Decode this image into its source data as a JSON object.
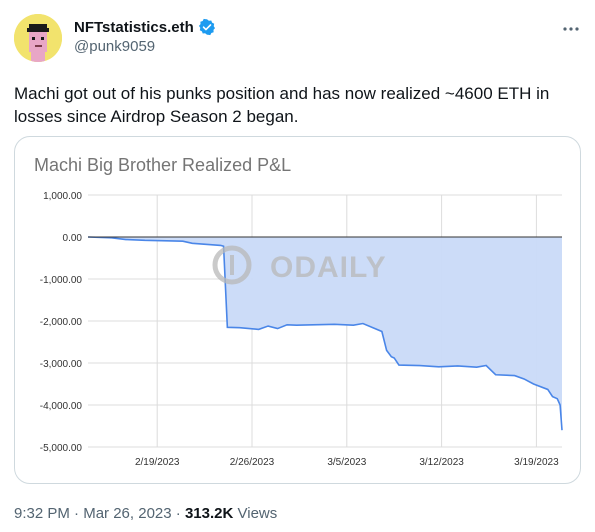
{
  "author": {
    "display_name": "NFTstatistics.eth",
    "handle": "@punk9059",
    "verified": true,
    "avatar_icon": "cryptopunk-avatar"
  },
  "more_icon": "more-options-icon",
  "tweet": {
    "text": "Machi got out of his punks position and has now realized ~4600 ETH in losses since Airdrop Season 2 began."
  },
  "chart_data": {
    "type": "area",
    "title": "Machi Big Brother Realized P&L",
    "ylim": [
      -5000,
      1000
    ],
    "y_ticks": [
      "1,000.00",
      "0.00",
      "-1,000.00",
      "-2,000.00",
      "-3,000.00",
      "-4,000.00",
      "-5,000.00"
    ],
    "x_ticks": [
      "2/19/2023",
      "2/26/2023",
      "3/5/2023",
      "3/12/2023",
      "3/19/2023"
    ],
    "xlim_days": [
      0,
      40
    ],
    "grid": true,
    "watermark": "ODAILY",
    "series": [
      {
        "fill_color": "#c9daf8",
        "line_color": "#4a86e8",
        "points": [
          [
            0,
            0
          ],
          [
            2.5,
            -20
          ],
          [
            4,
            -60
          ],
          [
            6,
            -80
          ],
          [
            10,
            -100
          ],
          [
            11,
            -150
          ],
          [
            14,
            -200
          ],
          [
            14.3,
            -220
          ],
          [
            14.7,
            -2150
          ],
          [
            16,
            -2160
          ],
          [
            18,
            -2200
          ],
          [
            19,
            -2120
          ],
          [
            20,
            -2180
          ],
          [
            21,
            -2090
          ],
          [
            22,
            -2100
          ],
          [
            26,
            -2080
          ],
          [
            28,
            -2100
          ],
          [
            29,
            -2060
          ],
          [
            31,
            -2250
          ],
          [
            31.5,
            -2700
          ],
          [
            32,
            -2850
          ],
          [
            32.3,
            -2880
          ],
          [
            32.8,
            -3050
          ],
          [
            35,
            -3060
          ],
          [
            37,
            -3090
          ],
          [
            39,
            -3070
          ],
          [
            41,
            -3100
          ],
          [
            42,
            -3060
          ],
          [
            43,
            -3280
          ],
          [
            45,
            -3300
          ],
          [
            46,
            -3380
          ],
          [
            47,
            -3500
          ],
          [
            48.5,
            -3630
          ],
          [
            49,
            -3800
          ],
          [
            49.5,
            -3850
          ],
          [
            49.8,
            -4000
          ],
          [
            50,
            -4600
          ]
        ]
      }
    ]
  },
  "footer": {
    "time": "9:32 PM",
    "date": "Mar 26, 2023",
    "separator1": "·",
    "separator2": "·",
    "views_count": "313.2K",
    "views_label": "Views"
  }
}
